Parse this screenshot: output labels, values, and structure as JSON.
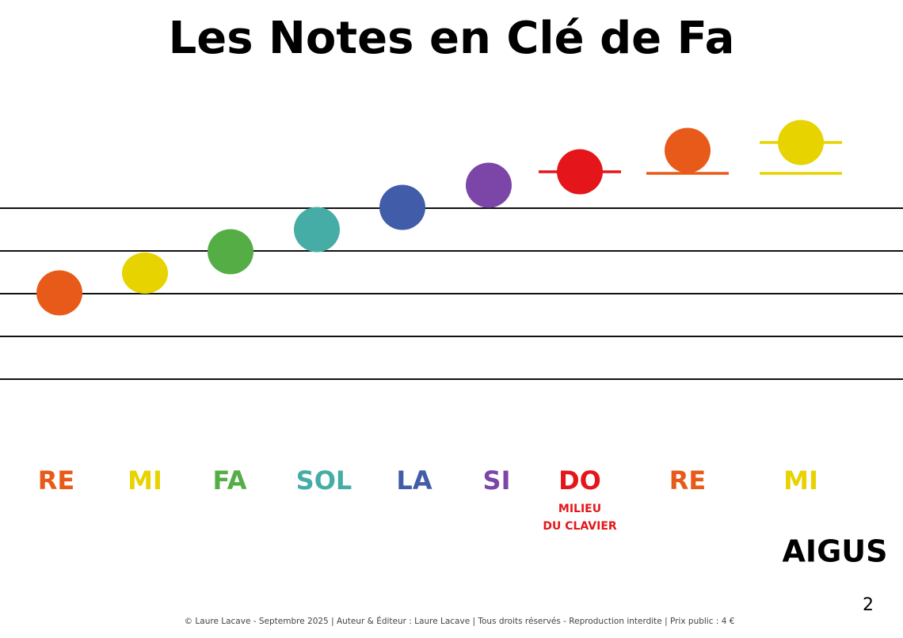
{
  "title": "Les Notes en Clé de Fa",
  "notes": [
    {
      "label": "RE",
      "color": "#e85a19"
    },
    {
      "label": "MI",
      "color": "#e6d300"
    },
    {
      "label": "FA",
      "color": "#55ad45"
    },
    {
      "label": "SOL",
      "color": "#45ada5"
    },
    {
      "label": "LA",
      "color": "#415ca8"
    },
    {
      "label": "SI",
      "color": "#7b46a8"
    },
    {
      "label": "DO",
      "color": "#e4161b",
      "sublabel": [
        "MILIEU",
        "DU CLAVIER"
      ]
    },
    {
      "label": "RE",
      "color": "#e85a19"
    },
    {
      "label": "MI",
      "color": "#e6d300"
    }
  ],
  "register": "AIGUS",
  "page_number": "2",
  "footer": "© Laure Lacave - Septembre 2025 | Auteur & Éditeur : Laure Lacave | Tous droits réservés - Reproduction interdite | Prix public : 4 €"
}
